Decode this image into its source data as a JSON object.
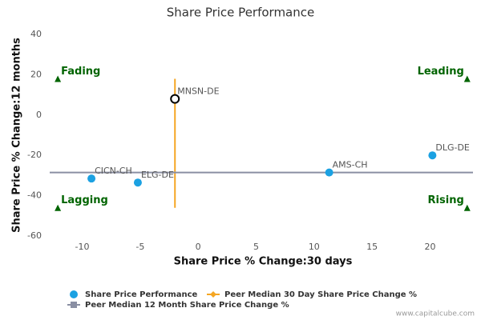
{
  "chart_data": {
    "type": "scatter",
    "title": "Share Price Performance",
    "x_label": "Share Price % Change:30 days",
    "y_label": "Share Price % Change:12 months",
    "xlim": [
      -12.8,
      23.7
    ],
    "xticks": [
      -10,
      -5,
      0,
      5,
      10,
      15,
      20
    ],
    "ylim": [
      -60,
      40
    ],
    "yticks": [
      -60,
      -40,
      -20,
      0,
      20,
      40
    ],
    "series": [
      {
        "name": "Share Price Performance",
        "color": "#1ba1e2",
        "labels": [
          "CICN-CH",
          "ELG-DE",
          "AMS-CH",
          "DLG-DE"
        ],
        "x": [
          -9.2,
          -5.2,
          11.3,
          20.2
        ],
        "values": [
          -31.5,
          -33.5,
          -28.5,
          -20
        ]
      },
      {
        "name": "Peer Median 30 Day Share Price Change %",
        "color": "#f5a623",
        "orientation": "vertical",
        "value": -2
      },
      {
        "name": "Peer Median 12 Month Share Price Change %",
        "color": "#8a8fa3",
        "orientation": "horizontal",
        "value": -28.5
      }
    ],
    "highlighted_point": {
      "label": "MNSN-DE",
      "x": -2,
      "y": 8
    },
    "quadrants": [
      {
        "label": "Fading",
        "x": -12.1,
        "y": 18
      },
      {
        "label": "Leading",
        "x": 23.2,
        "y": 18
      },
      {
        "label": "Lagging",
        "x": -12.1,
        "y": -46
      },
      {
        "label": "Rising",
        "x": 23.2,
        "y": -46
      }
    ],
    "quadrant_color": "#006400",
    "source": "www.capitalcube.com"
  }
}
